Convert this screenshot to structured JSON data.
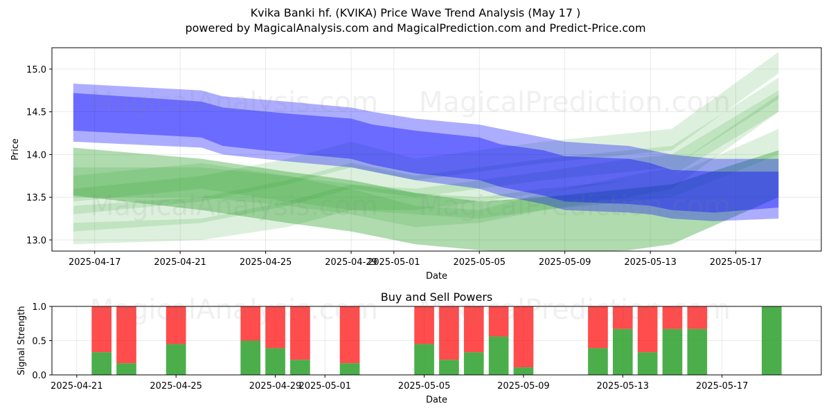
{
  "title": "Kvika Banki hf. (KVIKA) Price Wave Trend Analysis (May 17 )",
  "subtitle": "powered by MagicalAnalysis.com and MagicalPrediction.com and Predict-Price.com",
  "watermarks": [
    "MagicalAnalysis.com",
    "MagicalPrediction.com"
  ],
  "colors": {
    "blue": "#0000ff",
    "green": "#2ca02c",
    "buy": "#2ca02c",
    "sell": "#ff0000"
  },
  "chart_data": [
    {
      "type": "area",
      "title": "",
      "xlabel": "Date",
      "ylabel": "Price",
      "xlim": [
        "2025-04-15",
        "2025-05-21"
      ],
      "ylim": [
        12.87,
        15.25
      ],
      "x_ticks": [
        "2025-04-17",
        "2025-04-21",
        "2025-04-25",
        "2025-04-29",
        "2025-05-01",
        "2025-05-05",
        "2025-05-09",
        "2025-05-13",
        "2025-05-17"
      ],
      "y_ticks": [
        13.0,
        13.5,
        14.0,
        14.5,
        15.0
      ],
      "grid": true,
      "blue_wave": {
        "x": [
          "2025-04-16",
          "2025-04-22",
          "2025-04-23",
          "2025-04-26",
          "2025-04-29",
          "2025-04-30",
          "2025-05-02",
          "2025-05-05",
          "2025-05-06",
          "2025-05-08",
          "2025-05-09",
          "2025-05-12",
          "2025-05-13",
          "2025-05-14",
          "2025-05-16",
          "2025-05-19"
        ],
        "outer_upper": [
          14.83,
          14.75,
          14.68,
          14.62,
          14.55,
          14.5,
          14.42,
          14.35,
          14.3,
          14.2,
          14.15,
          14.1,
          14.05,
          14.0,
          13.95,
          13.95
        ],
        "outer_lower": [
          14.15,
          14.08,
          14.0,
          13.92,
          13.85,
          13.8,
          13.7,
          13.6,
          13.52,
          13.42,
          13.35,
          13.32,
          13.3,
          13.25,
          13.22,
          13.25
        ],
        "inner_upper": [
          14.72,
          14.62,
          14.55,
          14.48,
          14.42,
          14.35,
          14.28,
          14.2,
          14.12,
          14.05,
          13.98,
          13.95,
          13.9,
          13.82,
          13.8,
          13.8
        ],
        "inner_lower": [
          14.28,
          14.2,
          14.1,
          14.02,
          13.95,
          13.88,
          13.78,
          13.7,
          13.62,
          13.52,
          13.45,
          13.42,
          13.4,
          13.35,
          13.32,
          13.38
        ]
      },
      "green_waves": [
        {
          "x": [
            "2025-04-16",
            "2025-04-22",
            "2025-04-26",
            "2025-04-29",
            "2025-05-02",
            "2025-05-05",
            "2025-05-08",
            "2025-05-12",
            "2025-05-14",
            "2025-05-19"
          ],
          "upper": [
            14.08,
            13.95,
            13.8,
            13.7,
            13.55,
            13.45,
            13.5,
            13.6,
            13.65,
            14.05
          ],
          "lower": [
            13.52,
            13.35,
            13.2,
            13.1,
            12.95,
            12.88,
            12.85,
            12.88,
            12.95,
            13.5
          ]
        },
        {
          "x": [
            "2025-04-16",
            "2025-04-22",
            "2025-04-26",
            "2025-04-29",
            "2025-05-02",
            "2025-05-05",
            "2025-05-08",
            "2025-05-12",
            "2025-05-14",
            "2025-05-19"
          ],
          "upper": [
            13.85,
            13.85,
            13.75,
            13.6,
            13.4,
            13.35,
            13.55,
            13.75,
            13.85,
            14.7
          ],
          "lower": [
            13.5,
            13.5,
            13.4,
            13.3,
            13.15,
            13.2,
            13.35,
            13.5,
            13.6,
            14.5
          ]
        },
        {
          "x": [
            "2025-04-16",
            "2025-04-22",
            "2025-04-26",
            "2025-04-29",
            "2025-05-02",
            "2025-05-05",
            "2025-05-08",
            "2025-05-12",
            "2025-05-14",
            "2025-05-19"
          ],
          "upper": [
            13.6,
            13.75,
            13.95,
            14.15,
            13.95,
            14.05,
            14.15,
            14.25,
            14.3,
            15.2
          ],
          "lower": [
            13.3,
            13.45,
            13.65,
            13.85,
            13.7,
            13.8,
            13.9,
            14.0,
            14.05,
            14.95
          ]
        },
        {
          "x": [
            "2025-04-16",
            "2025-04-22",
            "2025-04-26",
            "2025-04-29",
            "2025-05-02",
            "2025-05-05",
            "2025-05-08",
            "2025-05-12",
            "2025-05-14",
            "2025-05-19"
          ],
          "upper": [
            13.4,
            13.5,
            13.7,
            13.9,
            13.75,
            13.85,
            13.95,
            14.05,
            14.1,
            14.9
          ],
          "lower": [
            13.1,
            13.2,
            13.4,
            13.6,
            13.5,
            13.6,
            13.7,
            13.8,
            13.85,
            14.65
          ]
        },
        {
          "x": [
            "2025-04-16",
            "2025-04-22",
            "2025-04-26",
            "2025-04-29",
            "2025-05-02",
            "2025-05-05",
            "2025-05-08",
            "2025-05-12",
            "2025-05-14",
            "2025-05-19"
          ],
          "upper": [
            13.2,
            13.25,
            13.45,
            13.65,
            13.6,
            13.7,
            13.8,
            13.95,
            14.0,
            14.75
          ],
          "lower": [
            12.95,
            13.0,
            13.15,
            13.35,
            13.35,
            13.45,
            13.55,
            13.7,
            13.75,
            14.5
          ]
        },
        {
          "x": [
            "2025-04-16",
            "2025-04-22",
            "2025-04-26",
            "2025-04-29",
            "2025-05-02",
            "2025-05-05",
            "2025-05-08",
            "2025-05-12",
            "2025-05-14",
            "2025-05-19"
          ],
          "upper": [
            13.75,
            13.9,
            13.75,
            13.65,
            13.55,
            13.5,
            13.6,
            13.7,
            13.75,
            14.3
          ],
          "lower": [
            13.45,
            13.6,
            13.45,
            13.35,
            13.3,
            13.25,
            13.35,
            13.45,
            13.5,
            14.0
          ]
        }
      ]
    },
    {
      "type": "bar",
      "title": "Buy and Sell Powers",
      "xlabel": "Date",
      "ylabel": "Signal Strength",
      "xlim": [
        "2025-04-20",
        "2025-05-21"
      ],
      "ylim": [
        0.0,
        1.0
      ],
      "x_ticks": [
        "2025-04-21",
        "2025-04-25",
        "2025-04-29",
        "2025-05-01",
        "2025-05-05",
        "2025-05-09",
        "2025-05-13",
        "2025-05-17"
      ],
      "y_ticks": [
        0.0,
        0.5,
        1.0
      ],
      "grid": true,
      "series": [
        {
          "name": "",
          "dates": [
            "2025-04-22",
            "2025-04-23",
            "2025-04-25",
            "2025-04-28",
            "2025-04-29",
            "2025-04-30",
            "2025-05-02",
            "2025-05-05",
            "2025-05-06",
            "2025-05-07",
            "2025-05-08",
            "2025-05-09",
            "2025-05-12",
            "2025-05-13",
            "2025-05-14",
            "2025-05-15",
            "2025-05-16",
            "2025-05-19"
          ],
          "buy": [
            0.33,
            0.17,
            0.45,
            0.5,
            0.39,
            0.22,
            0.17,
            0.45,
            0.22,
            0.33,
            0.56,
            0.11,
            0.39,
            0.67,
            0.33,
            0.67,
            0.67,
            1.0
          ]
        }
      ]
    }
  ]
}
